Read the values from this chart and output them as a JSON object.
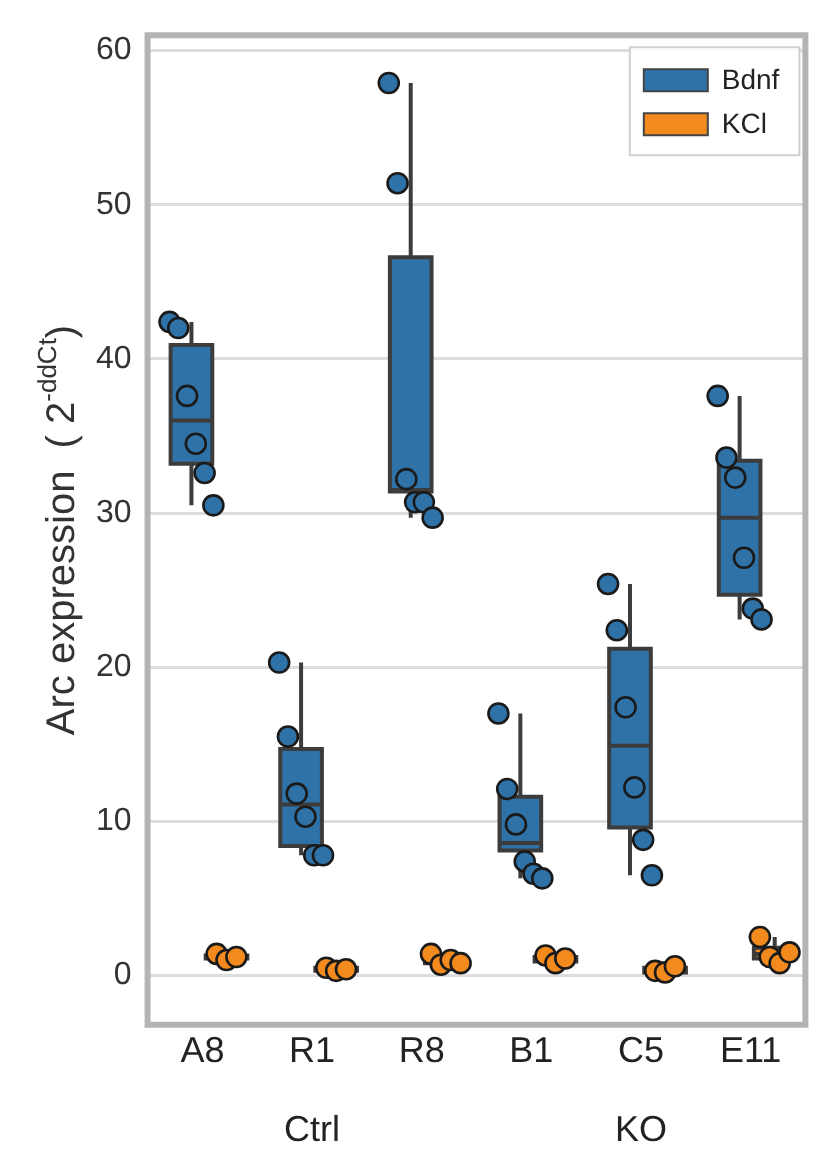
{
  "chart_data": {
    "type": "box",
    "ylabel": "Arc expression  ( 2$^{-ddCt}$)",
    "categories": [
      "A8",
      "R1",
      "R8",
      "B1",
      "C5",
      "E11"
    ],
    "ylim": [
      -3.2,
      61
    ],
    "yticks": [
      0,
      10,
      20,
      30,
      40,
      50,
      60
    ],
    "grid": "y",
    "legend": "top right",
    "annotations": [
      "Ctrl",
      "KO"
    ],
    "series": [
      {
        "name": "Bdnf",
        "color": "#2f72a8",
        "boxes": [
          {
            "low": 30.5,
            "q1": 33.2,
            "median": 36.0,
            "q3": 40.9,
            "high": 42.4
          },
          {
            "low": 7.8,
            "q1": 8.4,
            "median": 11.1,
            "q3": 14.7,
            "high": 20.3
          },
          {
            "low": 29.7,
            "q1": 31.4,
            "median": 31.5,
            "q3": 46.6,
            "high": 57.9
          },
          {
            "low": 6.3,
            "q1": 8.1,
            "median": 8.6,
            "q3": 11.6,
            "high": 17.0
          },
          {
            "low": 6.5,
            "q1": 9.6,
            "median": 14.9,
            "q3": 21.2,
            "high": 25.4
          },
          {
            "low": 23.1,
            "q1": 24.7,
            "median": 29.7,
            "q3": 33.4,
            "high": 37.6
          }
        ]
      },
      {
        "name": "KCl",
        "color": "#f28a1e",
        "boxes": [
          {
            "low": 1.0,
            "q1": 1.1,
            "median": 1.2,
            "q3": 1.3,
            "high": 1.4
          },
          {
            "low": 0.3,
            "q1": 0.3,
            "median": 0.4,
            "q3": 0.5,
            "high": 0.5
          },
          {
            "low": 0.7,
            "q1": 0.8,
            "median": 0.9,
            "q3": 1.1,
            "high": 1.4
          },
          {
            "low": 0.8,
            "q1": 0.9,
            "median": 1.1,
            "q3": 1.2,
            "high": 1.3
          },
          {
            "low": 0.2,
            "q1": 0.2,
            "median": 0.3,
            "q3": 0.5,
            "high": 0.6
          },
          {
            "low": 0.8,
            "q1": 1.1,
            "median": 1.4,
            "q3": 1.8,
            "high": 2.5
          }
        ]
      },
      {
        "type": "scatter",
        "color": "#2f72a8",
        "x": [
          "A8",
          "A8",
          "A8",
          "A8",
          "A8",
          "A8",
          "R1",
          "R1",
          "R1",
          "R1",
          "R1",
          "R1",
          "R8",
          "R8",
          "R8",
          "R8",
          "R8",
          "R8",
          "B1",
          "B1",
          "B1",
          "B1",
          "B1",
          "B1",
          "C5",
          "C5",
          "C5",
          "C5",
          "C5",
          "C5",
          "E11",
          "E11",
          "E11",
          "E11",
          "E11",
          "E11"
        ],
        "values": [
          42.4,
          42.0,
          37.6,
          34.5,
          32.6,
          30.5,
          20.3,
          15.5,
          11.8,
          10.3,
          7.8,
          7.8,
          57.9,
          51.4,
          32.2,
          30.7,
          30.7,
          29.7,
          17.0,
          12.1,
          9.8,
          7.4,
          6.6,
          6.3,
          25.4,
          22.4,
          17.4,
          12.2,
          8.8,
          6.5,
          37.6,
          33.6,
          32.3,
          27.1,
          23.8,
          23.1
        ]
      },
      {
        "type": "scatter",
        "color": "#f28a1e",
        "x": [
          "A8",
          "A8",
          "A8",
          "R1",
          "R1",
          "R1",
          "R8",
          "R8",
          "R8",
          "R8",
          "B1",
          "B1",
          "B1",
          "C5",
          "C5",
          "C5",
          "E11",
          "E11",
          "E11",
          "E11"
        ],
        "values": [
          1.4,
          1.0,
          1.2,
          0.5,
          0.3,
          0.4,
          1.4,
          0.7,
          1.0,
          0.8,
          1.3,
          0.8,
          1.1,
          0.3,
          0.2,
          0.6,
          2.5,
          1.2,
          0.8,
          1.5
        ]
      }
    ]
  }
}
